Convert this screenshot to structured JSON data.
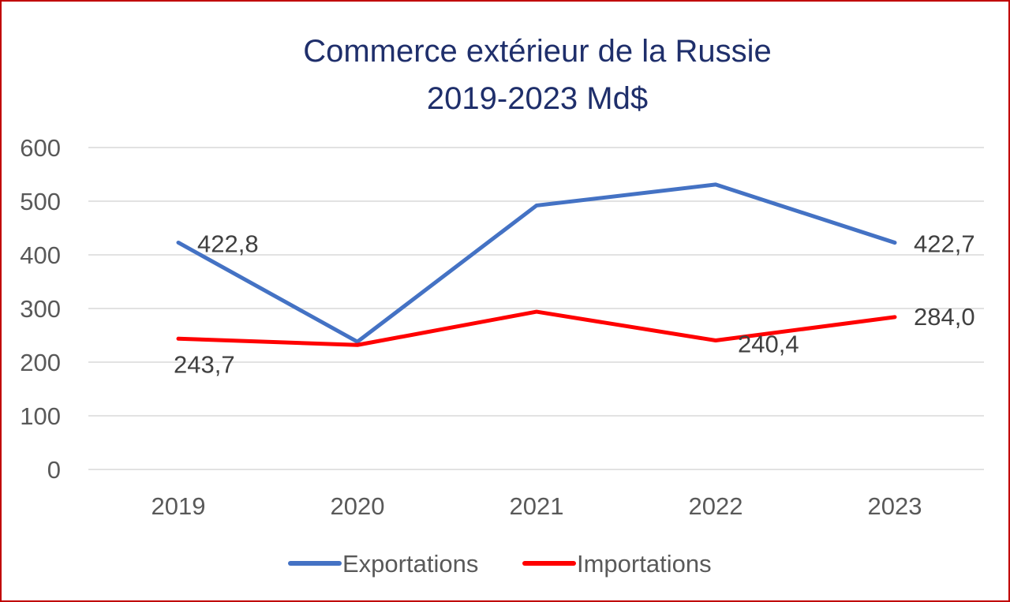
{
  "chart_data": {
    "type": "line",
    "title": [
      "Commerce extérieur de la Russie",
      "2019-2023 Md$"
    ],
    "xlabel": "",
    "ylabel": "",
    "categories": [
      "2019",
      "2020",
      "2021",
      "2022",
      "2023"
    ],
    "ylim": [
      0,
      600
    ],
    "yticks": [
      0,
      100,
      200,
      300,
      400,
      500,
      600
    ],
    "grid": true,
    "legend_position": "bottom",
    "series": [
      {
        "name": "Exportations",
        "color": "#4472c4",
        "values": [
          422.8,
          238,
          492,
          531,
          422.7
        ],
        "data_labels": [
          "422,8",
          "",
          "",
          "",
          "422,7"
        ]
      },
      {
        "name": "Importations",
        "color": "#ff0000",
        "values": [
          243.7,
          232,
          294,
          240.4,
          284.0
        ],
        "data_labels": [
          "243,7",
          "",
          "",
          "240,4",
          "284,0"
        ]
      }
    ]
  }
}
